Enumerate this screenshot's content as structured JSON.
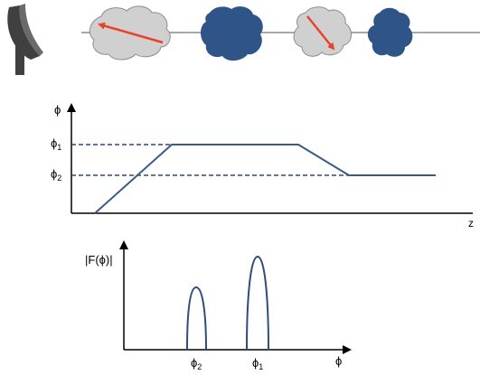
{
  "top_panel": {
    "colors": {
      "dish": "#404040",
      "line": "#8c8c8c",
      "cloud_light": "#d0d0d0",
      "cloud_dark": "#2f5588",
      "arrow": "#e8432a"
    },
    "icons": [
      "dish-antenna-icon",
      "cloud-light-icon",
      "cloud-dark-icon",
      "cloud-light-icon",
      "cloud-dark-icon"
    ]
  },
  "profile_plot": {
    "ylabel": "ϕ",
    "xlabel": "z",
    "phi1": {
      "base": "ϕ",
      "sub": "1"
    },
    "phi2": {
      "base": "ϕ",
      "sub": "2"
    },
    "colors": {
      "line": "#3a5a86",
      "dashed": "#2a4a78",
      "axis": "#000000"
    }
  },
  "spectrum_plot": {
    "ylabel": "|F(ϕ)|",
    "xlabel": "ϕ",
    "tick_phi2": {
      "base": "ϕ",
      "sub": "2"
    },
    "tick_phi1": {
      "base": "ϕ",
      "sub": "1"
    },
    "colors": {
      "peak": "#2f4d78",
      "axis": "#000000"
    }
  }
}
